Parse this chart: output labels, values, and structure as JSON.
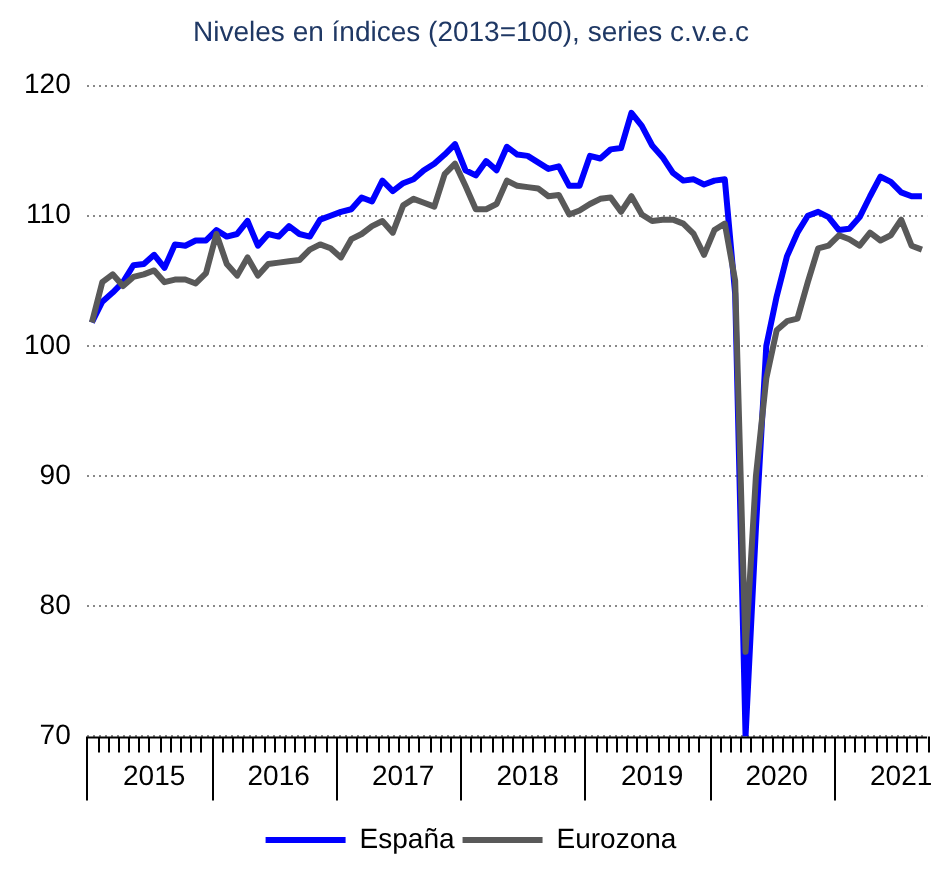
{
  "chart_data": {
    "type": "line",
    "title": "Niveles en índices (2013=100), series c.v.e.c",
    "categories": [
      null,
      null,
      null,
      null,
      null,
      null,
      "2015",
      null,
      null,
      null,
      null,
      null,
      null,
      null,
      null,
      null,
      null,
      null,
      "2016",
      null,
      null,
      null,
      null,
      null,
      null,
      null,
      null,
      null,
      null,
      null,
      "2017",
      null,
      null,
      null,
      null,
      null,
      null,
      null,
      null,
      null,
      null,
      null,
      "2018",
      null,
      null,
      null,
      null,
      null,
      null,
      null,
      null,
      null,
      null,
      null,
      "2019",
      null,
      null,
      null,
      null,
      null,
      null,
      null,
      null,
      null,
      null,
      null,
      "2020",
      null,
      null,
      null,
      null,
      null,
      null,
      null,
      null,
      null,
      null,
      null,
      "2021",
      null,
      null
    ],
    "series": [
      {
        "name": "España",
        "color": "#0000ff",
        "values": [
          101.8,
          103.4,
          104.1,
          104.9,
          106.2,
          106.3,
          107.0,
          106.0,
          107.8,
          107.7,
          108.1,
          108.1,
          108.9,
          108.4,
          108.6,
          109.6,
          107.7,
          108.6,
          108.4,
          109.2,
          108.6,
          108.4,
          109.7,
          110.0,
          110.3,
          110.5,
          111.4,
          111.1,
          112.7,
          111.9,
          112.5,
          112.8,
          113.5,
          114.0,
          114.7,
          115.5,
          113.5,
          113.1,
          114.2,
          113.5,
          115.3,
          114.7,
          114.6,
          114.1,
          113.6,
          113.8,
          112.3,
          112.3,
          114.6,
          114.4,
          115.1,
          115.2,
          117.9,
          116.9,
          115.4,
          114.5,
          113.3,
          112.7,
          112.8,
          112.4,
          112.7,
          112.8,
          104.0,
          70.0,
          86.0,
          100.0,
          103.8,
          106.9,
          108.7,
          110.0,
          110.3,
          109.9,
          108.9,
          109.0,
          109.9,
          111.5,
          113.0,
          112.6,
          111.8,
          111.5,
          111.5
        ]
      },
      {
        "name": "Eurozona",
        "color": "#595959",
        "values": [
          101.8,
          104.9,
          105.5,
          104.6,
          105.3,
          105.5,
          105.8,
          104.9,
          105.1,
          105.1,
          104.8,
          105.6,
          108.6,
          106.3,
          105.4,
          106.8,
          105.4,
          106.3,
          106.4,
          106.5,
          106.6,
          107.4,
          107.8,
          107.5,
          106.8,
          108.2,
          108.6,
          109.2,
          109.6,
          108.7,
          110.8,
          111.3,
          111.0,
          110.7,
          113.2,
          114.0,
          112.3,
          110.5,
          110.5,
          110.9,
          112.7,
          112.3,
          112.2,
          112.1,
          111.5,
          111.6,
          110.1,
          110.4,
          110.9,
          111.3,
          111.4,
          110.3,
          111.5,
          110.1,
          109.6,
          109.7,
          109.7,
          109.4,
          108.6,
          107.0,
          108.9,
          109.4,
          105.0,
          76.5,
          90.0,
          97.5,
          101.2,
          101.9,
          102.1,
          104.9,
          107.5,
          107.7,
          108.5,
          108.2,
          107.7,
          108.7,
          108.1,
          108.5,
          109.7,
          107.7,
          107.4
        ]
      }
    ],
    "ylim": [
      70,
      120
    ],
    "yticks": [
      70,
      80,
      90,
      100,
      110,
      120
    ],
    "grid": "y",
    "legend": "bottom",
    "marker": "none",
    "line_style": "solid"
  }
}
